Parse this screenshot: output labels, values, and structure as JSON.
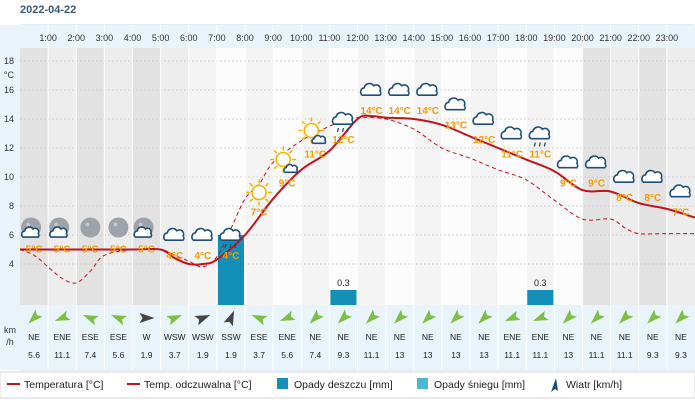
{
  "date": "2022-04-22",
  "hours": [
    "1:00",
    "2:00",
    "3:00",
    "4:00",
    "5:00",
    "6:00",
    "7:00",
    "8:00",
    "9:00",
    "10:00",
    "11:00",
    "12:00",
    "13:00",
    "14:00",
    "15:00",
    "16:00",
    "17:00",
    "18:00",
    "19:00",
    "20:00",
    "21:00",
    "22:00",
    "23:00"
  ],
  "y_axis": {
    "unit_label": "°C",
    "ticks": [
      18,
      16,
      14,
      12,
      10,
      8,
      6,
      4
    ]
  },
  "wind_axis_label": [
    "km",
    "/h"
  ],
  "chart_data": {
    "type": "line",
    "x_range": [
      0,
      24
    ],
    "ylim": [
      2,
      20
    ],
    "series": [
      {
        "name": "Temperatura [°C]",
        "color": "#c0131b",
        "style": "solid",
        "x": [
          0,
          1,
          2,
          3,
          4,
          5,
          5.5,
          6,
          6.5,
          7,
          8,
          9,
          10,
          11,
          12,
          12.5,
          13,
          14,
          15,
          16,
          17,
          18,
          19,
          20,
          21,
          22,
          23,
          24
        ],
        "y": [
          5,
          5,
          5,
          5,
          5,
          5,
          4.4,
          4,
          4,
          4.3,
          6,
          8.5,
          10.5,
          11.8,
          14,
          14.2,
          14.1,
          14,
          13.6,
          12.8,
          12,
          11.2,
          10.4,
          9.1,
          9,
          8.2,
          7.8,
          7.2
        ]
      },
      {
        "name": "Temp. odczuwalna [°C]",
        "color": "#c0131b",
        "style": "dashed",
        "x": [
          0,
          0.5,
          1,
          1.5,
          2,
          2.5,
          3,
          4,
          5,
          5.5,
          6,
          6.5,
          7,
          7.4,
          8,
          8.5,
          9,
          10,
          11,
          11.5,
          12,
          13,
          14,
          15,
          16,
          17,
          18,
          19,
          20,
          21,
          21.5,
          22,
          23,
          24
        ],
        "y": [
          5,
          4.6,
          3.8,
          3,
          2.7,
          3.5,
          4.6,
          5,
          5,
          4.6,
          4.2,
          3.8,
          4.5,
          6,
          8.5,
          9.5,
          11,
          12.5,
          13.5,
          13.9,
          14.1,
          14,
          13.3,
          12,
          11.3,
          10.5,
          9.8,
          8.4,
          7.1,
          7.1,
          6.5,
          6.1,
          6.1,
          6.1
        ]
      }
    ],
    "temp_labels": [
      "5°C",
      "5°C",
      "5°C",
      "5°C",
      "5°C",
      "4°C",
      "4°C",
      "4°C",
      "7°C",
      "9°C",
      "11°C",
      "12°C",
      "14°C",
      "14°C",
      "14°C",
      "13°C",
      "12°C",
      "11°C",
      "11°C",
      "9°C",
      "9°C",
      "8°C",
      "8°C",
      "7°C"
    ],
    "rain": [
      {
        "hour_index": 7,
        "value": 4.2,
        "label": ""
      },
      {
        "hour_index": 11,
        "value": 0.3,
        "label": "0.3"
      },
      {
        "hour_index": 18,
        "value": 0.3,
        "label": "0.3"
      }
    ],
    "weather_icons": [
      "moon-cloud",
      "moon-cloud",
      "moon",
      "moon",
      "moon-cloud",
      "cloud",
      "cloud",
      "rain-cloud",
      "sun",
      "sun-cloud",
      "sun-cloud",
      "rain-cloud",
      "cloud",
      "cloud",
      "cloud",
      "cloud",
      "cloud",
      "cloud",
      "rain-cloud",
      "cloud",
      "cloud",
      "cloud",
      "cloud",
      "cloud"
    ]
  },
  "wind": {
    "directions": [
      "NE",
      "ENE",
      "ESE",
      "ESE",
      "W",
      "WSW",
      "WSW",
      "SSW",
      "ESE",
      "ENE",
      "NE",
      "NE",
      "NE",
      "NE",
      "NE",
      "NE",
      "NE",
      "ENE",
      "ENE",
      "NE",
      "NE",
      "NE",
      "NE",
      "NE"
    ],
    "speeds": [
      "5.6",
      "11.1",
      "7.4",
      "5.6",
      "1.9",
      "3.7",
      "1.9",
      "1.9",
      "3.7",
      "5.6",
      "7.4",
      "9.3",
      "11.1",
      "13",
      "13",
      "13",
      "13",
      "11.1",
      "11.1",
      "13",
      "11.1",
      "11.1",
      "9.3",
      "9.3"
    ],
    "arrow_colors": [
      "#7dbf42",
      "#7dbf42",
      "#7dbf42",
      "#7dbf42",
      "#444",
      "#7dbf42",
      "#444",
      "#444",
      "#7dbf42",
      "#7dbf42",
      "#7dbf42",
      "#7dbf42",
      "#7dbf42",
      "#7dbf42",
      "#7dbf42",
      "#7dbf42",
      "#7dbf42",
      "#7dbf42",
      "#7dbf42",
      "#7dbf42",
      "#7dbf42",
      "#7dbf42",
      "#7dbf42",
      "#7dbf42"
    ]
  },
  "legend": {
    "temperature": "Temperatura [°C]",
    "feels_like": "Temp. odczuwalna [°C]",
    "rain": "Opady deszczu [mm]",
    "snow": "Opady śniegu [mm]",
    "wind": "Wiatr [km/h]"
  },
  "colors": {
    "temp": "#c0131b",
    "rain": "#138fb8",
    "snow": "#4fb7d2",
    "wind_arrow": "#7dbf42",
    "band_dark": "#e6e6e6",
    "band_light": "#f6f6f6",
    "axis_blue": "#e9f3fa"
  }
}
